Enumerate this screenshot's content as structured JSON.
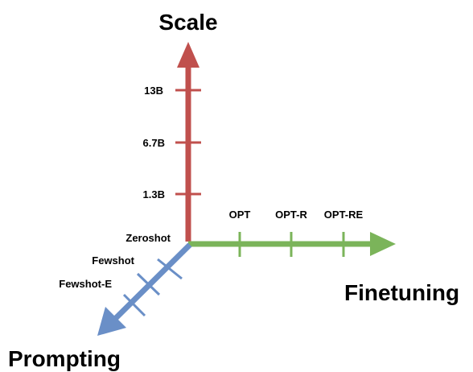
{
  "diagram": {
    "axes": {
      "scale": {
        "title": "Scale",
        "color": "#c0504d",
        "ticks": [
          "1.3B",
          "6.7B",
          "13B"
        ]
      },
      "finetuning": {
        "title": "Finetuning",
        "color": "#7bb45a",
        "ticks": [
          "OPT",
          "OPT-R",
          "OPT-RE"
        ]
      },
      "prompting": {
        "title": "Prompting",
        "color": "#6a8fc7",
        "ticks": [
          "Zeroshot",
          "Fewshot",
          "Fewshot-E"
        ]
      }
    }
  }
}
